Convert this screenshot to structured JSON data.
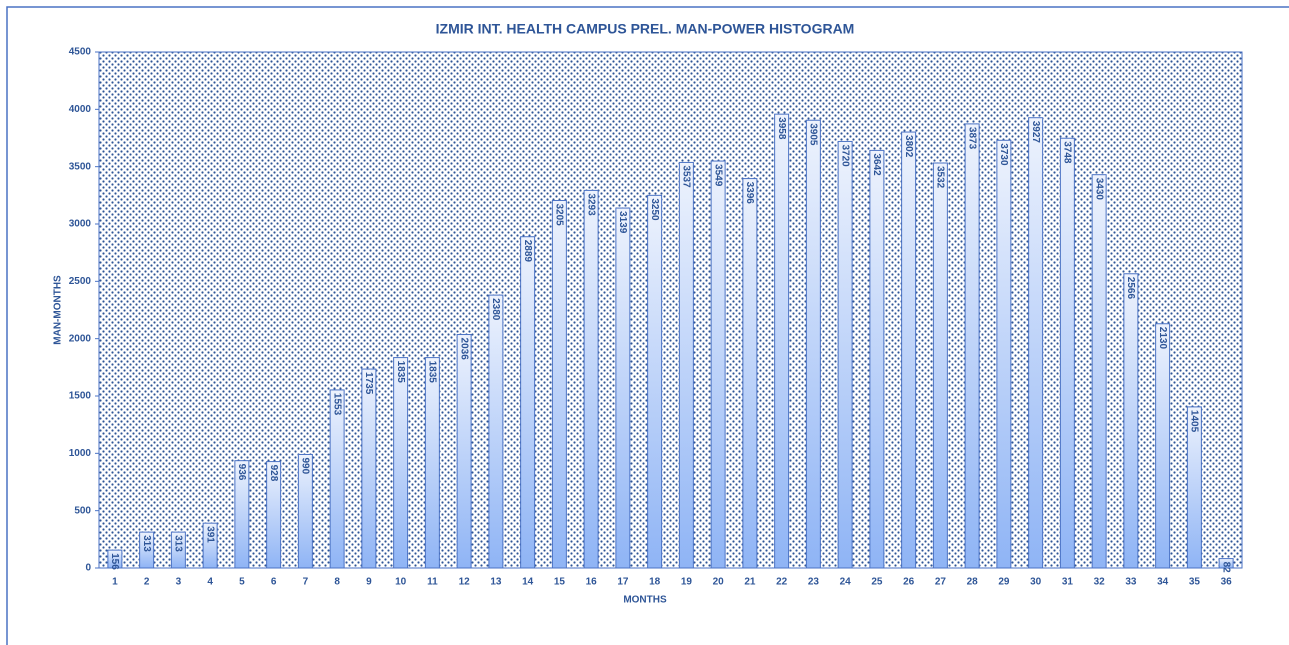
{
  "chart_data": {
    "type": "bar",
    "title": "IZMIR INT. HEALTH CAMPUS PREL. MAN-POWER HISTOGRAM",
    "x_label": "MONTHS",
    "y_label": "MAN-MONTHS",
    "categories": [
      "1",
      "2",
      "3",
      "4",
      "5",
      "6",
      "7",
      "8",
      "9",
      "10",
      "11",
      "12",
      "13",
      "14",
      "15",
      "16",
      "17",
      "18",
      "19",
      "20",
      "21",
      "22",
      "23",
      "24",
      "25",
      "26",
      "27",
      "28",
      "29",
      "30",
      "31",
      "32",
      "33",
      "34",
      "35",
      "36"
    ],
    "values": [
      156,
      313,
      313,
      391,
      936,
      928,
      990,
      1553,
      1735,
      1835,
      1835,
      2036,
      2380,
      2889,
      3205,
      3293,
      3139,
      3250,
      3537,
      3549,
      3396,
      3958,
      3905,
      3720,
      3642,
      3802,
      3532,
      3873,
      3730,
      3927,
      3748,
      3430,
      2566,
      2130,
      1405,
      82
    ],
    "color": "#8fb4f5",
    "ylim": [
      0,
      4500
    ],
    "yticks": [
      0,
      500,
      1000,
      1500,
      2000,
      2500,
      3000,
      3500,
      4000,
      4500
    ],
    "grid": false
  }
}
